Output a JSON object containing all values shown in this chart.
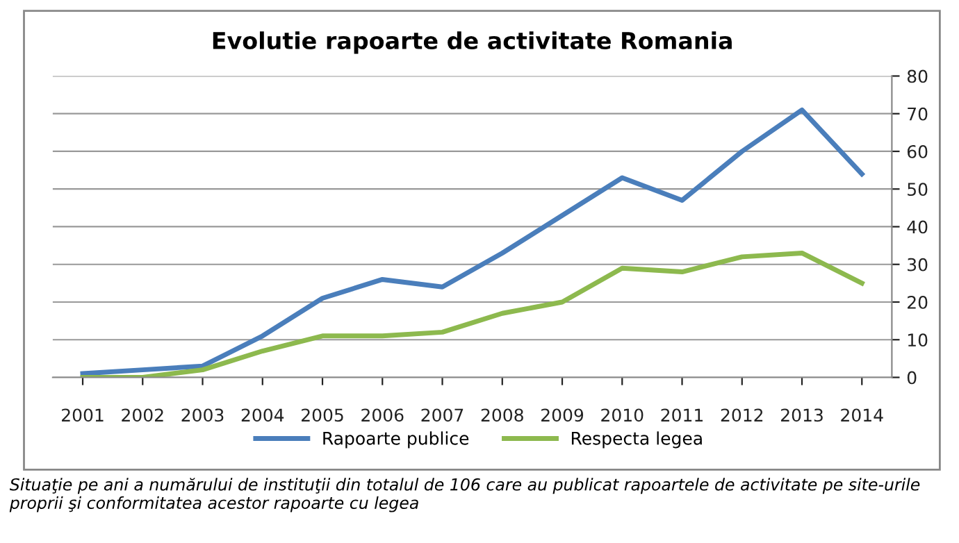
{
  "chart_data": {
    "type": "line",
    "title": "Evolutie rapoarte de activitate Romania",
    "categories": [
      "2001",
      "2002",
      "2003",
      "2004",
      "2005",
      "2006",
      "2007",
      "2008",
      "2009",
      "2010",
      "2011",
      "2012",
      "2013",
      "2014"
    ],
    "series": [
      {
        "name": "Rapoarte publice",
        "color": "#4a7ebb",
        "values": [
          1,
          2,
          3,
          11,
          21,
          26,
          24,
          33,
          43,
          53,
          47,
          60,
          71,
          54
        ]
      },
      {
        "name": "Respecta legea",
        "color": "#8db94e",
        "values": [
          0,
          0,
          2,
          7,
          11,
          11,
          12,
          17,
          20,
          29,
          28,
          32,
          33,
          25
        ]
      }
    ],
    "ylim": [
      0,
      80
    ],
    "yticks": [
      0,
      10,
      20,
      30,
      40,
      50,
      60,
      70,
      80
    ],
    "grid": "y",
    "legend": "bottom",
    "marker": "none",
    "line_style": "solid",
    "annotations": [
      "Situaţie pe ani a numărului de instituţii din totalul de 106 care au publicat rapoartele de activitate pe site-urile proprii şi conformitatea acestor rapoarte cu legea"
    ]
  }
}
